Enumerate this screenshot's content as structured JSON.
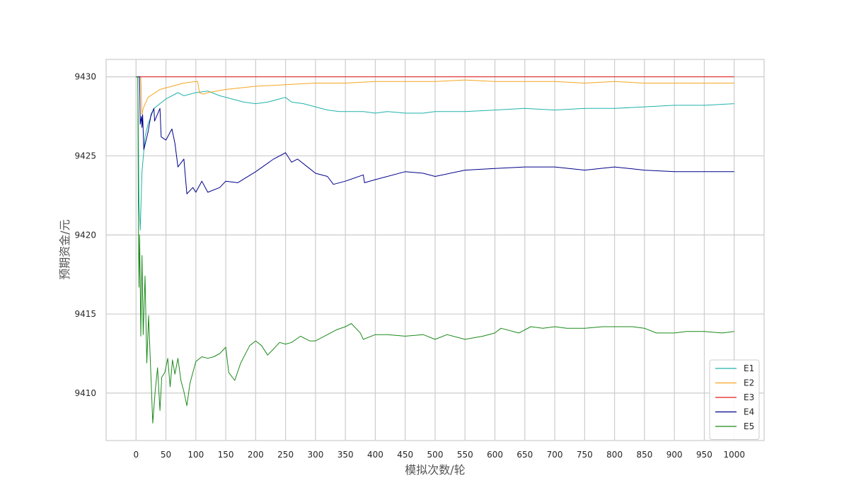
{
  "chart_data": {
    "type": "line",
    "title": "",
    "xlabel": "模拟次数/轮",
    "ylabel": "预期资金/元",
    "xlim": [
      -50,
      1050
    ],
    "ylim": [
      9407,
      9431.1
    ],
    "xticks": [
      0,
      50,
      100,
      150,
      200,
      250,
      300,
      350,
      400,
      450,
      500,
      550,
      600,
      650,
      700,
      750,
      800,
      850,
      900,
      950,
      1000
    ],
    "yticks": [
      9410,
      9415,
      9420,
      9425,
      9430
    ],
    "grid": true,
    "legend_position": "bottom-right",
    "series": [
      {
        "name": "E1",
        "color": "#20b2aa",
        "points": [
          [
            0,
            9430
          ],
          [
            3,
            9430
          ],
          [
            5,
            9422
          ],
          [
            7,
            9420.3
          ],
          [
            10,
            9424
          ],
          [
            15,
            9426.2
          ],
          [
            20,
            9427
          ],
          [
            30,
            9428
          ],
          [
            50,
            9428.6
          ],
          [
            70,
            9429
          ],
          [
            80,
            9428.8
          ],
          [
            100,
            9429
          ],
          [
            120,
            9429.1
          ],
          [
            140,
            9428.8
          ],
          [
            160,
            9428.6
          ],
          [
            180,
            9428.4
          ],
          [
            200,
            9428.3
          ],
          [
            220,
            9428.4
          ],
          [
            240,
            9428.6
          ],
          [
            250,
            9428.7
          ],
          [
            260,
            9428.4
          ],
          [
            280,
            9428.3
          ],
          [
            300,
            9428.1
          ],
          [
            320,
            9427.9
          ],
          [
            340,
            9427.8
          ],
          [
            380,
            9427.8
          ],
          [
            400,
            9427.7
          ],
          [
            420,
            9427.8
          ],
          [
            450,
            9427.7
          ],
          [
            480,
            9427.7
          ],
          [
            500,
            9427.8
          ],
          [
            550,
            9427.8
          ],
          [
            600,
            9427.9
          ],
          [
            650,
            9428
          ],
          [
            700,
            9427.9
          ],
          [
            750,
            9428
          ],
          [
            800,
            9428
          ],
          [
            850,
            9428.1
          ],
          [
            900,
            9428.2
          ],
          [
            950,
            9428.2
          ],
          [
            1000,
            9428.3
          ]
        ]
      },
      {
        "name": "E2",
        "color": "#f5a623",
        "points": [
          [
            0,
            9430
          ],
          [
            8,
            9430
          ],
          [
            10,
            9427.6
          ],
          [
            12,
            9428
          ],
          [
            20,
            9428.7
          ],
          [
            40,
            9429.2
          ],
          [
            60,
            9429.4
          ],
          [
            80,
            9429.6
          ],
          [
            100,
            9429.7
          ],
          [
            103,
            9429.7
          ],
          [
            106,
            9429
          ],
          [
            112,
            9428.9
          ],
          [
            120,
            9429
          ],
          [
            150,
            9429.2
          ],
          [
            200,
            9429.4
          ],
          [
            250,
            9429.5
          ],
          [
            300,
            9429.6
          ],
          [
            350,
            9429.6
          ],
          [
            400,
            9429.7
          ],
          [
            450,
            9429.7
          ],
          [
            500,
            9429.7
          ],
          [
            550,
            9429.8
          ],
          [
            600,
            9429.7
          ],
          [
            650,
            9429.7
          ],
          [
            700,
            9429.7
          ],
          [
            750,
            9429.6
          ],
          [
            800,
            9429.7
          ],
          [
            850,
            9429.6
          ],
          [
            900,
            9429.6
          ],
          [
            950,
            9429.6
          ],
          [
            1000,
            9429.6
          ]
        ]
      },
      {
        "name": "E3",
        "color": "#e31a1c",
        "points": [
          [
            0,
            9430
          ],
          [
            1000,
            9430
          ]
        ]
      },
      {
        "name": "E4",
        "color": "#00008b",
        "points": [
          [
            0,
            9430
          ],
          [
            6,
            9430
          ],
          [
            7,
            9427
          ],
          [
            9,
            9427.5
          ],
          [
            10,
            9426.8
          ],
          [
            11,
            9427.6
          ],
          [
            13,
            9425.4
          ],
          [
            20,
            9426.5
          ],
          [
            25,
            9427.6
          ],
          [
            30,
            9428
          ],
          [
            31,
            9427.2
          ],
          [
            40,
            9428
          ],
          [
            42,
            9426.2
          ],
          [
            50,
            9426
          ],
          [
            60,
            9426.7
          ],
          [
            65,
            9425.8
          ],
          [
            70,
            9424.3
          ],
          [
            80,
            9424.8
          ],
          [
            85,
            9422.6
          ],
          [
            95,
            9423
          ],
          [
            100,
            9422.7
          ],
          [
            110,
            9423.4
          ],
          [
            120,
            9422.7
          ],
          [
            140,
            9423
          ],
          [
            150,
            9423.4
          ],
          [
            170,
            9423.3
          ],
          [
            200,
            9424
          ],
          [
            230,
            9424.8
          ],
          [
            250,
            9425.2
          ],
          [
            260,
            9424.6
          ],
          [
            270,
            9424.8
          ],
          [
            290,
            9424.2
          ],
          [
            300,
            9423.9
          ],
          [
            320,
            9423.7
          ],
          [
            330,
            9423.2
          ],
          [
            350,
            9423.4
          ],
          [
            380,
            9423.8
          ],
          [
            382,
            9423.3
          ],
          [
            400,
            9423.5
          ],
          [
            450,
            9424
          ],
          [
            480,
            9423.9
          ],
          [
            500,
            9423.7
          ],
          [
            550,
            9424.1
          ],
          [
            600,
            9424.2
          ],
          [
            650,
            9424.3
          ],
          [
            700,
            9424.3
          ],
          [
            750,
            9424.1
          ],
          [
            800,
            9424.3
          ],
          [
            850,
            9424.1
          ],
          [
            900,
            9424
          ],
          [
            950,
            9424
          ],
          [
            1000,
            9424
          ]
        ]
      },
      {
        "name": "E5",
        "color": "#1b8a1b",
        "points": [
          [
            0,
            9430
          ],
          [
            3,
            9430
          ],
          [
            4,
            9420
          ],
          [
            5,
            9416.7
          ],
          [
            6,
            9420
          ],
          [
            7,
            9417
          ],
          [
            8,
            9413.6
          ],
          [
            10,
            9418.7
          ],
          [
            12,
            9413.7
          ],
          [
            15,
            9417.4
          ],
          [
            18,
            9411.9
          ],
          [
            21,
            9414.9
          ],
          [
            25,
            9411
          ],
          [
            28,
            9408.1
          ],
          [
            32,
            9410.1
          ],
          [
            36,
            9411.6
          ],
          [
            40,
            9408.9
          ],
          [
            43,
            9411
          ],
          [
            48,
            9411.3
          ],
          [
            53,
            9412.2
          ],
          [
            57,
            9410.4
          ],
          [
            61,
            9412.1
          ],
          [
            65,
            9411.2
          ],
          [
            70,
            9412.2
          ],
          [
            75,
            9410.8
          ],
          [
            80,
            9410.1
          ],
          [
            85,
            9409.2
          ],
          [
            90,
            9410.6
          ],
          [
            100,
            9412
          ],
          [
            110,
            9412.3
          ],
          [
            120,
            9412.2
          ],
          [
            130,
            9412.3
          ],
          [
            140,
            9412.5
          ],
          [
            150,
            9412.9
          ],
          [
            155,
            9411.3
          ],
          [
            165,
            9410.8
          ],
          [
            175,
            9411.9
          ],
          [
            190,
            9413
          ],
          [
            200,
            9413.3
          ],
          [
            210,
            9413
          ],
          [
            220,
            9412.4
          ],
          [
            240,
            9413.2
          ],
          [
            250,
            9413.1
          ],
          [
            260,
            9413.2
          ],
          [
            275,
            9413.6
          ],
          [
            290,
            9413.3
          ],
          [
            300,
            9413.3
          ],
          [
            320,
            9413.7
          ],
          [
            335,
            9414
          ],
          [
            350,
            9414.2
          ],
          [
            360,
            9414.4
          ],
          [
            375,
            9413.8
          ],
          [
            380,
            9413.4
          ],
          [
            400,
            9413.7
          ],
          [
            420,
            9413.7
          ],
          [
            450,
            9413.6
          ],
          [
            480,
            9413.7
          ],
          [
            500,
            9413.4
          ],
          [
            520,
            9413.7
          ],
          [
            550,
            9413.4
          ],
          [
            580,
            9413.6
          ],
          [
            600,
            9413.8
          ],
          [
            610,
            9414.1
          ],
          [
            640,
            9413.8
          ],
          [
            660,
            9414.2
          ],
          [
            680,
            9414.1
          ],
          [
            700,
            9414.2
          ],
          [
            720,
            9414.1
          ],
          [
            750,
            9414.1
          ],
          [
            780,
            9414.2
          ],
          [
            800,
            9414.2
          ],
          [
            830,
            9414.2
          ],
          [
            850,
            9414.1
          ],
          [
            870,
            9413.8
          ],
          [
            900,
            9413.8
          ],
          [
            920,
            9413.9
          ],
          [
            950,
            9413.9
          ],
          [
            980,
            9413.8
          ],
          [
            1000,
            9413.9
          ]
        ]
      }
    ]
  }
}
